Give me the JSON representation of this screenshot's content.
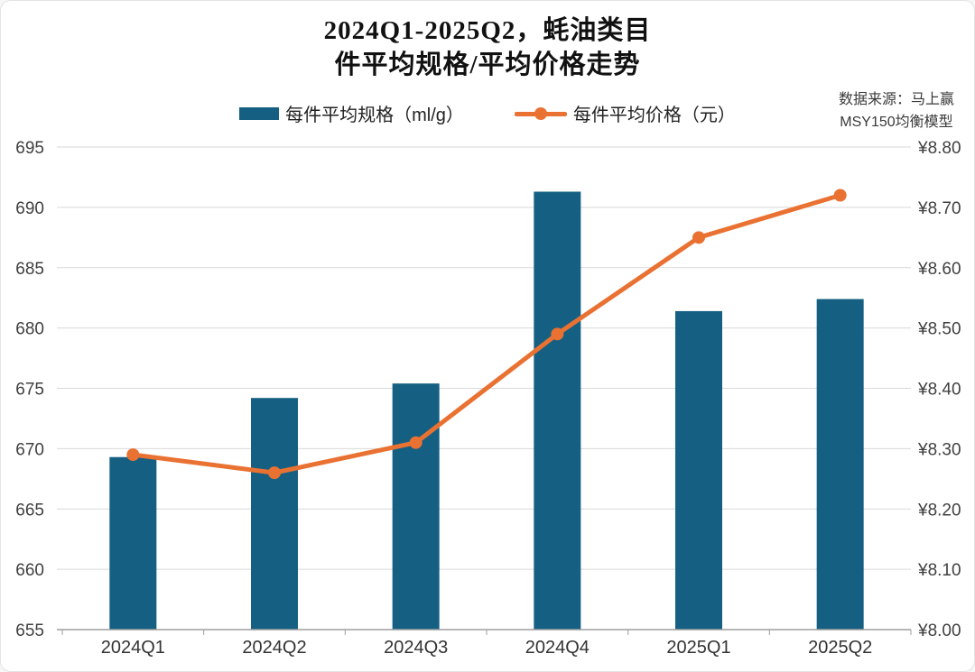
{
  "window": {
    "background": "#ffffff",
    "border_color": "#e3e3e3"
  },
  "title": {
    "line1": "2024Q1-2025Q2，蚝油类目",
    "line2": "件平均规格/平均价格走势"
  },
  "source": {
    "line1": "数据来源：马上赢",
    "line2": "MSY150均衡模型"
  },
  "legend": [
    {
      "label": "每件平均规格（ml/g）",
      "marker": "bar-swatch",
      "color": "#156082"
    },
    {
      "label": "每件平均价格（元）",
      "marker": "line-dot-swatch",
      "color": "#E97132"
    }
  ],
  "chart_data": {
    "type": "bar",
    "subtype": "bar+line combo, dual axis",
    "title": "2024Q1-2025Q2，蚝油类目 件平均规格/平均价格走势",
    "categories": [
      "2024Q1",
      "2024Q2",
      "2024Q3",
      "2024Q4",
      "2025Q1",
      "2025Q2"
    ],
    "series": [
      {
        "name": "每件平均规格（ml/g）",
        "type": "bar",
        "axis": "left",
        "color": "#156082",
        "values": [
          669.3,
          674.2,
          675.4,
          691.3,
          681.4,
          682.4
        ]
      },
      {
        "name": "每件平均价格（元）",
        "type": "line",
        "axis": "right",
        "color": "#E97132",
        "values": [
          8.29,
          8.26,
          8.31,
          8.49,
          8.65,
          8.72
        ]
      }
    ],
    "left_axis": {
      "min": 655,
      "max": 695,
      "step": 5,
      "ticks": [
        "695",
        "690",
        "685",
        "680",
        "675",
        "670",
        "665",
        "660",
        "655"
      ]
    },
    "right_axis": {
      "min": 8.0,
      "max": 8.8,
      "step": 0.1,
      "ticks": [
        "¥8.80",
        "¥8.70",
        "¥8.60",
        "¥8.50",
        "¥8.40",
        "¥8.30",
        "¥8.20",
        "¥8.10",
        "¥8.00"
      ]
    },
    "grid": true,
    "gridline_color": "#D9D9D9",
    "axis_line_color": "#9E9E9E",
    "tick_text_color": "#404040",
    "legend_position": "top-center"
  }
}
